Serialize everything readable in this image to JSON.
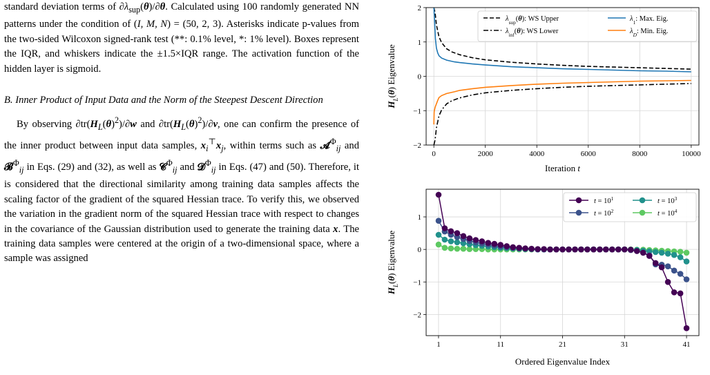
{
  "text": {
    "para1": "standard deviation terms of ∂λsup(θ)/∂θ. Calculated using 100 randomly generated NN patterns under the condition of (I, M, N) = (50, 2, 3). Asterisks indicate p-values from the two-sided Wilcoxon signed-rank test (**: 0.1% level, *: 1% level). Boxes represent the IQR, and whiskers indicate the ±1.5×IQR range. The activation function of the hidden layer is sigmoid.",
    "section_heading": "B. Inner Product of Input Data and the Norm of the Steepest Descent Direction",
    "para2": "By observing ∂tr(HL(θ)²)/∂w and ∂tr(HL(θ)²)/∂v, one can confirm the presence of the inner product between input data samples, xi⊤xj, within terms such as 𝓐Φij and 𝓑Φij in Eqs. (29) and (32), as well as 𝓒Φij and 𝓓Φij in Eqs. (47) and (50). Therefore, it is considered that the directional similarity among training data samples affects the scaling factor of the gradient of the squared Hessian trace. To verify this, we observed the variation in the gradient norm of the squared Hessian trace with respect to changes in the covariance of the Gaussian distribution used to generate the training data x. The training data samples were centered at the origin of a two-dimensional space, where a sample was assigned"
  },
  "chart_data": [
    {
      "type": "line",
      "xlabel": "Iteration t",
      "ylabel": "HL(θ) Eigenvalue",
      "xlim": [
        -300,
        10300
      ],
      "ylim": [
        -2,
        2
      ],
      "xticks": [
        "0",
        "2000",
        "4000",
        "6000",
        "8000",
        "10000"
      ],
      "yticks": [
        "−2",
        "−1",
        "0",
        "1",
        "2"
      ],
      "grid": true,
      "legend_position": "top-right",
      "series": [
        {
          "name": "λsup(θ): WS Upper",
          "style": "dashed",
          "color": "#000000",
          "x": [
            1,
            50,
            100,
            200,
            300,
            500,
            700,
            1000,
            1500,
            2000,
            3000,
            4000,
            5000,
            6000,
            7000,
            8000,
            9000,
            10000
          ],
          "y": [
            2.0,
            1.85,
            1.5,
            1.15,
            0.98,
            0.8,
            0.71,
            0.63,
            0.54,
            0.48,
            0.41,
            0.36,
            0.32,
            0.29,
            0.27,
            0.25,
            0.23,
            0.21
          ]
        },
        {
          "name": "λinf(θ): WS Lower",
          "style": "dashdot",
          "color": "#000000",
          "x": [
            1,
            50,
            100,
            200,
            300,
            500,
            700,
            1000,
            1500,
            2000,
            3000,
            4000,
            5000,
            6000,
            7000,
            8000,
            9000,
            10000
          ],
          "y": [
            -2.0,
            -1.85,
            -1.5,
            -1.15,
            -0.98,
            -0.8,
            -0.71,
            -0.63,
            -0.54,
            -0.48,
            -0.41,
            -0.36,
            -0.32,
            -0.29,
            -0.27,
            -0.25,
            -0.23,
            -0.21
          ]
        },
        {
          "name": "λ1: Max. Eig.",
          "style": "solid",
          "color": "#1f77b4",
          "x": [
            1,
            30,
            60,
            100,
            150,
            200,
            300,
            500,
            800,
            1000,
            1500,
            2000,
            3000,
            4000,
            5000,
            6000,
            7000,
            8000,
            9000,
            10000
          ],
          "y": [
            2.0,
            1.6,
            1.1,
            0.82,
            0.68,
            0.6,
            0.53,
            0.47,
            0.42,
            0.4,
            0.36,
            0.33,
            0.28,
            0.25,
            0.22,
            0.2,
            0.18,
            0.16,
            0.15,
            0.13
          ]
        },
        {
          "name": "λD: Min. Eig.",
          "style": "solid",
          "color": "#ff7f0e",
          "x": [
            1,
            10,
            20,
            50,
            100,
            150,
            200,
            300,
            500,
            800,
            1000,
            1500,
            2000,
            3000,
            4000,
            5000,
            6000,
            7000,
            8000,
            9000,
            10000
          ],
          "y": [
            -1.4,
            -1.05,
            -1.0,
            -0.9,
            -0.8,
            -0.7,
            -0.62,
            -0.56,
            -0.5,
            -0.45,
            -0.41,
            -0.36,
            -0.32,
            -0.27,
            -0.23,
            -0.2,
            -0.18,
            -0.16,
            -0.14,
            -0.13,
            -0.12
          ]
        }
      ]
    },
    {
      "type": "line",
      "xlabel": "Ordered Eigenvalue Index",
      "ylabel": "HL(θ) Eigenvalue",
      "xlim": [
        -1,
        43
      ],
      "ylim": [
        -2.65,
        1.85
      ],
      "xticks": [
        1,
        11,
        21,
        31,
        41
      ],
      "yticks": [
        -2,
        -1,
        0,
        1
      ],
      "grid": true,
      "legend_position": "top-right",
      "series": [
        {
          "name": "t = 10¹",
          "color": "#440154",
          "y": [
            1.68,
            0.65,
            0.56,
            0.5,
            0.41,
            0.34,
            0.29,
            0.25,
            0.2,
            0.17,
            0.14,
            0.1,
            0.07,
            0.05,
            0.03,
            0.02,
            0.01,
            0.01,
            0,
            0,
            0,
            0,
            0,
            0,
            0,
            0,
            0,
            0,
            0,
            0,
            0,
            -0.01,
            -0.05,
            -0.1,
            -0.2,
            -0.42,
            -0.55,
            -1.0,
            -1.32,
            -1.35,
            -2.42
          ]
        },
        {
          "name": "t = 10²",
          "color": "#3b528b",
          "y": [
            0.88,
            0.55,
            0.45,
            0.38,
            0.32,
            0.26,
            0.22,
            0.18,
            0.15,
            0.12,
            0.09,
            0.07,
            0.05,
            0.03,
            0.02,
            0.01,
            0,
            0,
            0,
            0,
            0,
            0,
            0,
            0,
            0,
            0,
            0,
            0,
            0,
            0,
            0,
            -0.02,
            -0.05,
            -0.1,
            -0.18,
            -0.46,
            -0.47,
            -0.52,
            -0.65,
            -0.75,
            -0.92
          ]
        },
        {
          "name": "t = 10³",
          "color": "#21918c",
          "y": [
            0.45,
            0.3,
            0.25,
            0.22,
            0.19,
            0.16,
            0.13,
            0.11,
            0.09,
            0.07,
            0.05,
            0.04,
            0.03,
            0.02,
            0.01,
            0.01,
            0,
            0,
            0,
            0,
            0,
            0,
            0,
            0,
            0,
            0,
            0,
            0,
            0,
            0,
            0,
            -0.01,
            -0.02,
            -0.04,
            -0.06,
            -0.08,
            -0.1,
            -0.13,
            -0.17,
            -0.24,
            -0.37
          ]
        },
        {
          "name": "t = 10⁴",
          "color": "#5ec962",
          "y": [
            0.15,
            0.05,
            0.03,
            0.02,
            0.02,
            0.01,
            0.01,
            0.01,
            0,
            0,
            0,
            0,
            0,
            0,
            0,
            0,
            0,
            0,
            0,
            0,
            0,
            0,
            0,
            0,
            0,
            0,
            0,
            0,
            0,
            0,
            0,
            0,
            -0.01,
            -0.01,
            -0.02,
            -0.03,
            -0.04,
            -0.05,
            -0.06,
            -0.07,
            -0.1
          ]
        }
      ]
    }
  ]
}
